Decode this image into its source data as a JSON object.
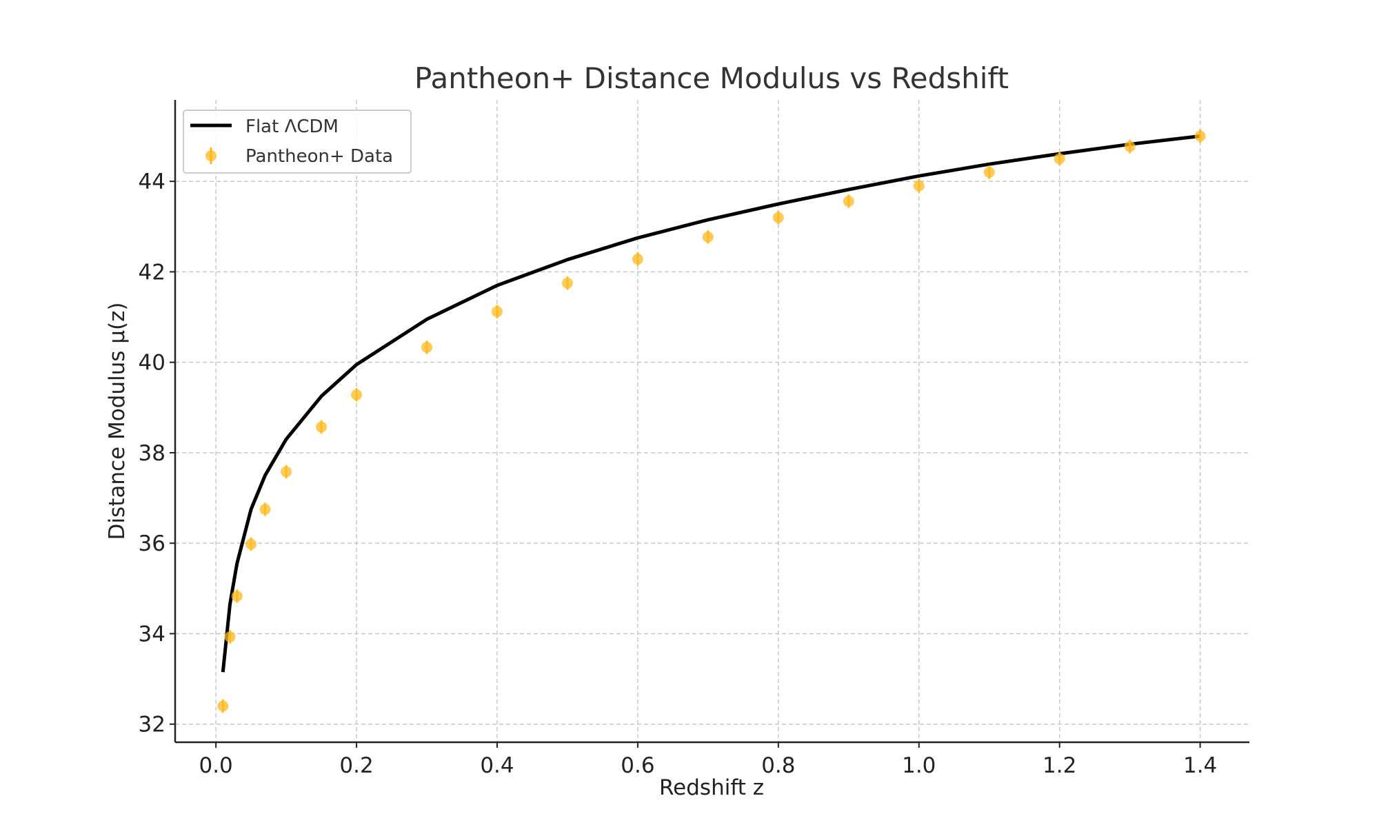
{
  "chart_data": {
    "type": "scatter",
    "title": "Pantheon+ Distance Modulus vs Redshift",
    "xlabel": "Redshift z",
    "ylabel": "Distance Modulus μ(z)",
    "xlim": [
      -0.058,
      1.47
    ],
    "ylim": [
      31.6,
      45.8
    ],
    "x_ticks": [
      0.0,
      0.2,
      0.4,
      0.6,
      0.8,
      1.0,
      1.2,
      1.4
    ],
    "x_tick_labels": [
      "0.0",
      "0.2",
      "0.4",
      "0.6",
      "0.8",
      "1.0",
      "1.2",
      "1.4"
    ],
    "y_ticks": [
      32,
      34,
      36,
      38,
      40,
      42,
      44
    ],
    "y_tick_labels": [
      "32",
      "34",
      "36",
      "38",
      "40",
      "42",
      "44"
    ],
    "grid": true,
    "legend_position": "top-left",
    "series": [
      {
        "name": "Flat ΛCDM",
        "kind": "line",
        "color": "#000000",
        "x": [
          0.01,
          0.02,
          0.03,
          0.05,
          0.07,
          0.1,
          0.15,
          0.2,
          0.3,
          0.4,
          0.5,
          0.6,
          0.7,
          0.8,
          0.9,
          1.0,
          1.1,
          1.2,
          1.3,
          1.4
        ],
        "y": [
          33.15,
          34.65,
          35.55,
          36.75,
          37.5,
          38.3,
          39.25,
          39.95,
          40.95,
          41.7,
          42.27,
          42.75,
          43.15,
          43.5,
          43.82,
          44.12,
          44.38,
          44.61,
          44.82,
          45.0
        ]
      },
      {
        "name": "Pantheon+ Data",
        "kind": "errorbar",
        "color": "#FFB81C",
        "x": [
          0.01,
          0.02,
          0.03,
          0.05,
          0.07,
          0.1,
          0.15,
          0.2,
          0.3,
          0.4,
          0.5,
          0.6,
          0.7,
          0.8,
          0.9,
          1.0,
          1.1,
          1.2,
          1.3,
          1.4
        ],
        "y": [
          32.4,
          33.93,
          34.83,
          35.98,
          36.75,
          37.58,
          38.57,
          39.28,
          40.33,
          41.12,
          41.75,
          42.28,
          42.77,
          43.2,
          43.56,
          43.9,
          44.2,
          44.5,
          44.77,
          45.0
        ],
        "yerr": [
          0.15,
          0.15,
          0.15,
          0.15,
          0.15,
          0.15,
          0.15,
          0.15,
          0.15,
          0.15,
          0.15,
          0.15,
          0.15,
          0.15,
          0.15,
          0.15,
          0.15,
          0.15,
          0.15,
          0.15
        ]
      }
    ]
  }
}
